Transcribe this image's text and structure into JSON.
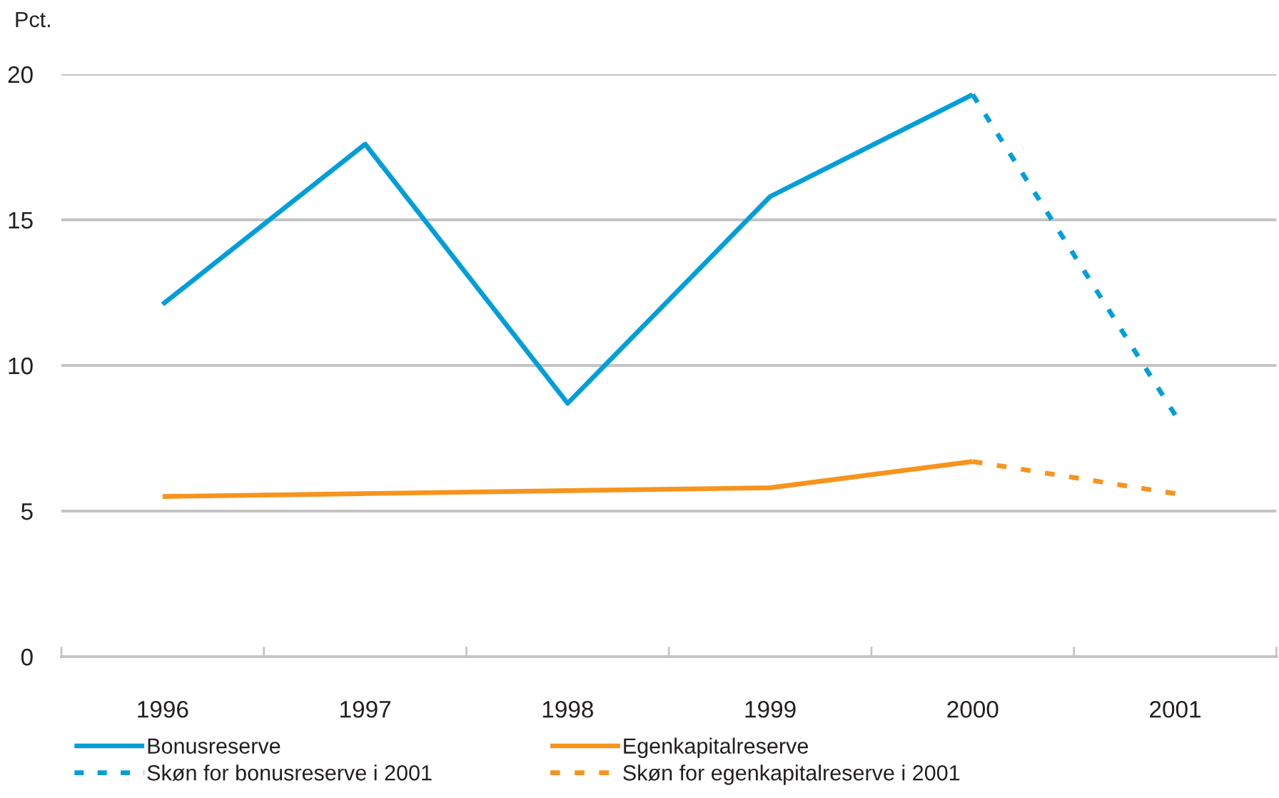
{
  "chart_data": {
    "type": "line",
    "ylabel": "Pct.",
    "categories": [
      "1996",
      "1997",
      "1998",
      "1999",
      "2000",
      "2001"
    ],
    "series": [
      {
        "name": "Bonusreserve",
        "color": "#009fda",
        "line_style": "solid",
        "values": [
          12.1,
          17.6,
          8.7,
          15.8,
          19.3,
          null
        ]
      },
      {
        "name": "Egenkapitalreserve",
        "color": "#f7941d",
        "line_style": "solid",
        "values": [
          5.5,
          5.6,
          5.7,
          5.8,
          6.7,
          null
        ]
      },
      {
        "name": "Skøn for bonusreserve i 2001",
        "color": "#009fda",
        "line_style": "dashed",
        "values": [
          null,
          null,
          null,
          null,
          19.3,
          8.3
        ]
      },
      {
        "name": "Skøn for egenkapitalreserve i 2001",
        "color": "#f7941d",
        "line_style": "dashed",
        "values": [
          null,
          null,
          null,
          null,
          6.7,
          5.6
        ]
      }
    ],
    "ylim": [
      0,
      20
    ],
    "yticks": [
      0,
      5,
      10,
      15,
      20
    ],
    "grid": "y",
    "legend": "bottom",
    "marker": "none"
  }
}
